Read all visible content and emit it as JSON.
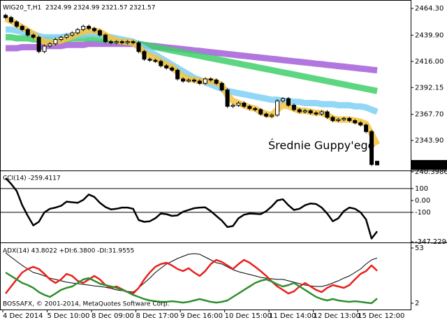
{
  "chart_data": [
    {
      "type": "candlestick",
      "title": "WIG20_T,H1  2324.99 2324.99 2321.57 2321.57",
      "annotation": "Średnie Guppy'ego",
      "up_color": "#ffffff",
      "down_color": "#000000",
      "categories": [
        "4 Dec 2014",
        null,
        null,
        null,
        null,
        null,
        null,
        null,
        "5 Dec 10:00",
        null,
        null,
        null,
        null,
        null,
        null,
        null,
        "8 Dec 09:00",
        null,
        null,
        null,
        null,
        null,
        null,
        null,
        "8 Dec 17:00",
        null,
        null,
        null,
        null,
        null,
        null,
        null,
        "9 Dec 16:00",
        null,
        null,
        null,
        null,
        null,
        null,
        null,
        "10 Dec 15:00",
        null,
        null,
        null,
        null,
        null,
        null,
        null,
        "11 Dec 14:00",
        null,
        null,
        null,
        null,
        null,
        null,
        null,
        "12 Dec 13:00",
        null,
        null,
        null,
        null,
        null,
        null,
        null,
        "15 Dec 12:00",
        null,
        null,
        null
      ],
      "open": [
        2458,
        2456,
        2452,
        2448,
        2445,
        2440,
        2438,
        2425,
        2430,
        2432,
        2436,
        2438,
        2440,
        2442,
        2445,
        2448,
        2446,
        2444,
        2440,
        2434,
        2433,
        2434,
        2433,
        2434,
        2433,
        2425,
        2418,
        2417,
        2416,
        2412,
        2410,
        2408,
        2400,
        2398,
        2399,
        2398,
        2396,
        2400,
        2399,
        2396,
        2390,
        2375,
        2376,
        2378,
        2375,
        2373,
        2372,
        2368,
        2366,
        2367,
        2380,
        2382,
        2376,
        2372,
        2370,
        2371,
        2369,
        2368,
        2370,
        2365,
        2362,
        2363,
        2364,
        2362,
        2360,
        2358,
        2352,
        2324.99
      ],
      "high": [
        2459.5,
        2457.5,
        2453.5,
        2449.5,
        2446.5,
        2441.5,
        2439.5,
        2431.5,
        2433.5,
        2437.5,
        2439.5,
        2441.5,
        2443.5,
        2446.5,
        2449.5,
        2449.5,
        2447.5,
        2445.5,
        2441.5,
        2435.5,
        2435.5,
        2435.5,
        2435.5,
        2435.5,
        2434.5,
        2426.5,
        2419.5,
        2418.5,
        2417.5,
        2413.5,
        2411.5,
        2409.5,
        2401.5,
        2400.5,
        2400.5,
        2399.5,
        2401.5,
        2401.5,
        2400.5,
        2397.5,
        2391.5,
        2377.5,
        2379.5,
        2379.5,
        2376.5,
        2374.5,
        2373.5,
        2369.5,
        2368.5,
        2381.5,
        2383.5,
        2383.5,
        2377.5,
        2373.5,
        2372.5,
        2372.5,
        2370.5,
        2371.5,
        2371.5,
        2366.5,
        2364.5,
        2365.5,
        2365.5,
        2363.5,
        2361.5,
        2359.5,
        2353.5,
        2324.99
      ],
      "low": [
        2454.5,
        2450.5,
        2446.5,
        2443.5,
        2438.5,
        2436.5,
        2423.5,
        2423.5,
        2428.5,
        2430.5,
        2434.5,
        2436.5,
        2438.5,
        2440.5,
        2443.5,
        2444.5,
        2442.5,
        2438.5,
        2432.5,
        2431.5,
        2431.5,
        2431.5,
        2431.5,
        2431.5,
        2423.5,
        2416.5,
        2415.5,
        2414.5,
        2410.5,
        2408.5,
        2406.5,
        2398.5,
        2396.5,
        2396.5,
        2396.5,
        2394.5,
        2394.5,
        2397.5,
        2394.5,
        2388.5,
        2373.5,
        2373.5,
        2374.5,
        2373.5,
        2371.5,
        2370.5,
        2366.5,
        2364.5,
        2364.5,
        2365.5,
        2378.5,
        2374.5,
        2370.5,
        2368.5,
        2368.5,
        2367.5,
        2366.5,
        2366.5,
        2363.5,
        2360.5,
        2360.5,
        2361.5,
        2360.5,
        2358.5,
        2356.5,
        2350.5,
        2320.5,
        2321.57
      ],
      "close": [
        2456,
        2452,
        2448,
        2445,
        2440,
        2438,
        2425,
        2430,
        2432,
        2436,
        2438,
        2440,
        2442,
        2445,
        2448,
        2446,
        2444,
        2440,
        2434,
        2433,
        2434,
        2433,
        2434,
        2433,
        2425,
        2418,
        2417,
        2416,
        2412,
        2410,
        2408,
        2400,
        2398,
        2399,
        2398,
        2396,
        2400,
        2399,
        2396,
        2390,
        2375,
        2376,
        2378,
        2375,
        2373,
        2372,
        2368,
        2366,
        2367,
        2380,
        2382,
        2376,
        2372,
        2370,
        2371,
        2369,
        2368,
        2370,
        2365,
        2362,
        2363,
        2364,
        2362,
        2360,
        2358,
        2352,
        2322,
        2321.57
      ],
      "series": [
        {
          "color": "#a35fd8",
          "values": [
            2428,
            2428,
            2428,
            2429,
            2429,
            2429,
            2429,
            2430,
            2430,
            2430,
            2430,
            2431,
            2431,
            2431,
            2431,
            2432,
            2432,
            2432,
            2432,
            2432,
            2432,
            2432,
            2432,
            2432,
            2431.5,
            2431,
            2430.4,
            2429.9,
            2429.3,
            2428.8,
            2428.2,
            2427.7,
            2427.1,
            2426.6,
            2426,
            2425.5,
            2424.9,
            2424.4,
            2423.8,
            2423.3,
            2422.7,
            2422.2,
            2421.6,
            2421.1,
            2420.5,
            2420,
            2419.4,
            2418.9,
            2418.3,
            2417.8,
            2417.2,
            2416.7,
            2416.1,
            2415.6,
            2415,
            2414.5,
            2413.9,
            2413.4,
            2412.8,
            2412.3,
            2411.7,
            2411.2,
            2410.6,
            2410.1,
            2409.5,
            2409,
            2408.4,
            2407.9
          ]
        },
        {
          "color": "#3fcf6a",
          "values": [
            2438,
            2438,
            2437,
            2437,
            2437,
            2436,
            2436,
            2436,
            2436,
            2436,
            2436,
            2436,
            2437,
            2437,
            2437,
            2437,
            2437,
            2436,
            2436,
            2435,
            2435,
            2434,
            2434,
            2433,
            2432,
            2431,
            2430,
            2429,
            2428,
            2427,
            2426,
            2425,
            2424,
            2423,
            2422,
            2421,
            2420,
            2419,
            2418,
            2417,
            2416,
            2415,
            2414,
            2413,
            2412,
            2411,
            2410,
            2409,
            2408,
            2407,
            2406,
            2405,
            2404,
            2403,
            2402,
            2401,
            2400,
            2399,
            2398,
            2397,
            2396,
            2395,
            2394,
            2393,
            2392,
            2391,
            2390,
            2389
          ]
        },
        {
          "color": "#7fd0f5",
          "values": [
            2445,
            2445,
            2444,
            2443,
            2442,
            2441,
            2439,
            2438,
            2438,
            2438,
            2438,
            2439,
            2439,
            2440,
            2440,
            2441,
            2441,
            2440,
            2439,
            2438,
            2437,
            2436,
            2435,
            2434,
            2431,
            2428,
            2425,
            2422,
            2419,
            2416,
            2413,
            2410,
            2407,
            2404,
            2401,
            2399,
            2397,
            2395,
            2393,
            2391,
            2389,
            2388,
            2387,
            2386,
            2385,
            2384,
            2383,
            2382,
            2381,
            2381,
            2380,
            2380,
            2379,
            2379,
            2378,
            2378,
            2378,
            2377,
            2377,
            2377,
            2376,
            2376,
            2376,
            2375,
            2375,
            2374,
            2372,
            2370
          ]
        },
        {
          "color": "#f3c440",
          "values": [
            2455,
            2453,
            2450,
            2447,
            2444,
            2441,
            2436,
            2434,
            2433,
            2434,
            2435,
            2437,
            2439,
            2441,
            2443,
            2444,
            2444,
            2443,
            2440,
            2437,
            2435,
            2434,
            2434,
            2433,
            2429,
            2424,
            2421,
            2419,
            2416,
            2413,
            2411,
            2406,
            2402,
            2400,
            2399,
            2398,
            2398,
            2398,
            2397,
            2394,
            2385,
            2380,
            2378,
            2376,
            2374,
            2373,
            2370,
            2368,
            2367,
            2372,
            2376,
            2375,
            2373,
            2371,
            2371,
            2370,
            2369,
            2369,
            2367,
            2364,
            2363,
            2363,
            2363,
            2362,
            2361,
            2359,
            2350,
            2340
          ]
        }
      ],
      "ylim": [
        2317.8,
        2470.7
      ],
      "yticks": [
        {
          "value": 2464.3,
          "label": "2464.30"
        },
        {
          "value": 2439.9,
          "label": "2439.90"
        },
        {
          "value": 2416,
          "label": "2416.00"
        },
        2392.15,
        {
          "value": 2367.7,
          "label": "2367.70"
        },
        {
          "value": 2343.9,
          "label": "2343.90"
        }
      ]
    },
    {
      "type": "line",
      "title": "CCI(14) -259.4117",
      "color": "#000000",
      "values": [
        188,
        140,
        80,
        -40,
        -130,
        -210,
        -180,
        -100,
        -70,
        -60,
        -45,
        -10,
        -15,
        -20,
        5,
        50,
        30,
        -20,
        -55,
        -75,
        -70,
        -60,
        -60,
        -70,
        -165,
        -180,
        -175,
        -150,
        -110,
        -115,
        -130,
        -125,
        -95,
        -80,
        -65,
        -60,
        -58,
        -90,
        -130,
        -170,
        -223,
        -215,
        -150,
        -120,
        -110,
        -112,
        -115,
        -90,
        -50,
        0,
        10,
        -40,
        -80,
        -70,
        -40,
        -25,
        -30,
        -60,
        -110,
        -175,
        -150,
        -90,
        -60,
        -70,
        -100,
        -160,
        -320,
        -259.4117
      ],
      "levels": [
        100,
        -100
      ],
      "ylim": [
        -347.2294,
        240.3986
      ],
      "yticks": [
        240.3986,
        100,
        {
          "value": 0,
          "label": "0.00"
        },
        -100,
        -347.2294
      ]
    },
    {
      "type": "line",
      "title": "ADX(14) 43.8022 +DI:6.3800 -DI:31.9555",
      "annotation": "BOSSAFX, © 2001-2014, MetaQuotes Software Corp.",
      "series": [
        {
          "color": "#000000",
          "values": [
            48.5,
            44.6,
            40.7,
            36.9,
            33.6,
            30.4,
            29.1,
            27.2,
            25.2,
            24,
            22.7,
            21.4,
            20.7,
            20.1,
            19.4,
            18.8,
            18.1,
            17.5,
            16.8,
            15.6,
            14.3,
            13.6,
            13,
            12.3,
            16.2,
            20.7,
            25.2,
            30.4,
            34.3,
            38.2,
            40.7,
            43.3,
            45.3,
            47.2,
            47.8,
            47.2,
            44.6,
            42,
            39.4,
            38.2,
            35.6,
            33,
            31.1,
            29.8,
            28.5,
            27.2,
            25.9,
            25.2,
            24.6,
            24,
            24,
            22.7,
            21.4,
            20.1,
            18.8,
            18.1,
            17.5,
            17.5,
            18.8,
            20.7,
            22.7,
            25.2,
            27.2,
            30.4,
            33.6,
            38.2,
            42,
            43.8022
          ]
        },
        {
          "color": "#e8201c",
          "values": [
            11,
            17.5,
            24,
            30.4,
            33.6,
            35.6,
            33.6,
            29.1,
            24,
            20.7,
            24,
            29.1,
            27.2,
            22.7,
            20.7,
            24,
            27.2,
            24,
            18.8,
            16.2,
            17.5,
            14.9,
            12.3,
            11,
            16.2,
            24,
            30.4,
            35.6,
            38.2,
            39.4,
            36.9,
            33.6,
            31.7,
            34.3,
            30.4,
            27.2,
            31.7,
            38.2,
            42,
            40.1,
            36.9,
            33.6,
            38.2,
            42,
            39.4,
            35.6,
            31.7,
            27.2,
            22.1,
            17.5,
            14.3,
            11,
            13,
            17.5,
            20.7,
            17.5,
            14.3,
            12.3,
            16.2,
            18.8,
            17.5,
            16.2,
            18.8,
            24,
            29.1,
            31.7,
            36.9,
            31.9555
          ]
        },
        {
          "color": "#2f8f2f",
          "values": [
            30.4,
            27.2,
            24,
            20.7,
            18.8,
            16.2,
            12.3,
            9.7,
            7.8,
            11,
            14.3,
            16.2,
            17.5,
            20.7,
            24,
            25.2,
            22.7,
            20.1,
            18.8,
            17.5,
            16.2,
            14.3,
            12.3,
            9.7,
            7.8,
            5.9,
            4.6,
            3.9,
            3.3,
            3.3,
            3.9,
            3.3,
            2.6,
            3.3,
            4.6,
            5.9,
            4.6,
            3.3,
            2.6,
            3.3,
            4.6,
            7.8,
            11,
            14.3,
            17.5,
            20.7,
            22.7,
            24,
            22.1,
            19.4,
            17.5,
            18.8,
            20.7,
            17.5,
            14.3,
            11,
            7.8,
            5.9,
            4.6,
            5.9,
            4.6,
            3.9,
            3.3,
            3.9,
            3.3,
            2.6,
            2,
            6.38
          ]
        }
      ],
      "ylim": [
        -3.8,
        56.2
      ],
      "yticks": [
        53,
        2
      ]
    }
  ]
}
